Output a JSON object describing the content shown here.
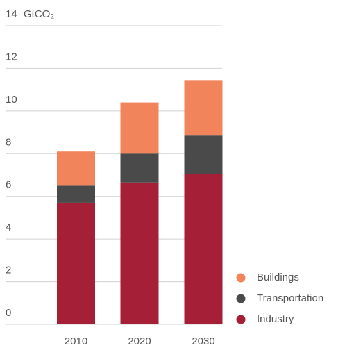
{
  "chart_data": {
    "type": "stacked_bar",
    "y_unit": "GtCO₂",
    "categories": [
      "2010",
      "2020",
      "2030"
    ],
    "series": [
      {
        "name": "Industry",
        "color": "#a51f36",
        "values": [
          5.7,
          6.65,
          7.05
        ]
      },
      {
        "name": "Transportation",
        "color": "#4a4a4a",
        "values": [
          0.8,
          1.35,
          1.8
        ]
      },
      {
        "name": "Buildings",
        "color": "#f2845c",
        "values": [
          1.6,
          2.4,
          2.6
        ]
      }
    ],
    "ylim": [
      0,
      14
    ],
    "yticks": [
      0,
      2,
      4,
      6,
      8,
      10,
      12,
      14
    ],
    "grid": true,
    "legend": "lower right"
  }
}
